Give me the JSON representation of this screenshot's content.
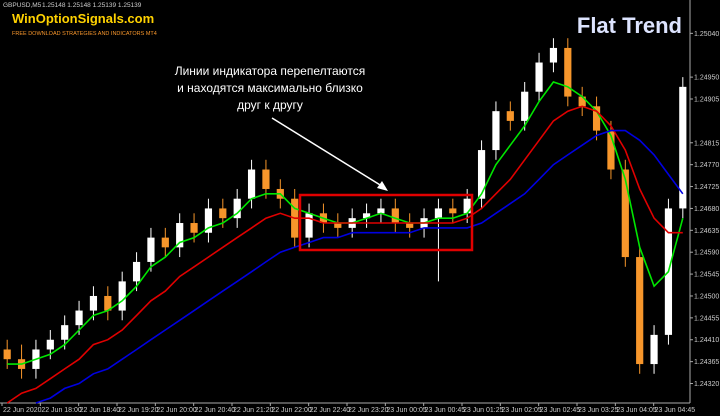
{
  "header": {
    "symbol": "GBPUSD,M5",
    "quote": "1.25148 1.25148 1.25139 1.25139",
    "logo": "WinOptionSignals.com",
    "tagline": "FREE DOWNLOAD STRATEGIES AND INDICATORS MT4"
  },
  "chart_data": {
    "type": "candlestick",
    "title": "Flat Trend",
    "annotation": [
      "Линии индикатора перепелтаются",
      "и находятся максимально близко",
      "друг к другу"
    ],
    "x_tick_labels": [
      "22 Jun 2020",
      "22 Jun 18:00",
      "22 Jun 18:40",
      "22 Jun 19:20",
      "22 Jun 20:00",
      "22 Jun 20:40",
      "22 Jun 21:20",
      "22 Jun 22:00",
      "22 Jun 22:40",
      "22 Jun 23:20",
      "23 Jun 00:05",
      "23 Jun 00:45",
      "23 Jun 01:25",
      "23 Jun 02:05",
      "23 Jun 02:45",
      "23 Jun 03:25",
      "23 Jun 04:05",
      "23 Jun 04:45"
    ],
    "ylim": [
      1.24282,
      1.25088
    ],
    "yticks": [
      {
        "value": 1.2504,
        "label": "1.25040"
      },
      {
        "value": 1.2495,
        "label": "1.24950"
      },
      {
        "value": 1.24905,
        "label": "1.24905"
      },
      {
        "value": 1.24815,
        "label": "1.24815"
      },
      {
        "value": 1.2477,
        "label": "1.24770"
      },
      {
        "value": 1.24725,
        "label": "1.24725"
      },
      {
        "value": 1.2468,
        "label": "1.24680"
      },
      {
        "value": 1.24635,
        "label": "1.24635"
      },
      {
        "value": 1.2459,
        "label": "1.24590"
      },
      {
        "value": 1.24545,
        "label": "1.24545"
      },
      {
        "value": 1.245,
        "label": "1.24500"
      },
      {
        "value": 1.24455,
        "label": "1.24455"
      },
      {
        "value": 1.2441,
        "label": "1.24410"
      },
      {
        "value": 1.24365,
        "label": "1.24365"
      },
      {
        "value": 1.2432,
        "label": "1.24320"
      }
    ],
    "up_color": "#ffffff",
    "down_color": "#f7962b",
    "open": [
      1.2439,
      1.2437,
      1.2435,
      1.2439,
      1.2441,
      1.2444,
      1.2447,
      1.245,
      1.2447,
      1.2453,
      1.2457,
      1.2462,
      1.246,
      1.2465,
      1.2463,
      1.2468,
      1.2466,
      1.247,
      1.2476,
      1.2472,
      1.247,
      1.2462,
      1.2467,
      1.2465,
      1.2464,
      1.2466,
      1.2467,
      1.2468,
      1.2465,
      1.2464,
      1.2466,
      1.2468,
      1.2467,
      1.247,
      1.248,
      1.2488,
      1.2486,
      1.2492,
      1.2498,
      1.2501,
      1.2491,
      1.2489,
      1.2484,
      1.2476,
      1.2458,
      1.2436,
      1.2442,
      1.2468
    ],
    "high": [
      1.2441,
      1.244,
      1.2441,
      1.2443,
      1.2446,
      1.2449,
      1.2452,
      1.2452,
      1.2455,
      1.2459,
      1.2464,
      1.2464,
      1.2467,
      1.2467,
      1.247,
      1.247,
      1.2472,
      1.2478,
      1.2478,
      1.2474,
      1.2472,
      1.2469,
      1.2469,
      1.2467,
      1.2468,
      1.2469,
      1.247,
      1.247,
      1.2467,
      1.2468,
      1.247,
      1.247,
      1.2472,
      1.2482,
      1.249,
      1.249,
      1.2494,
      1.25,
      1.2503,
      1.2503,
      1.2493,
      1.2491,
      1.2486,
      1.2478,
      1.246,
      1.2444,
      1.247,
      1.2495
    ],
    "low": [
      1.2435,
      1.2433,
      1.2433,
      1.2437,
      1.2439,
      1.2442,
      1.2445,
      1.2445,
      1.2445,
      1.2451,
      1.2455,
      1.2458,
      1.2458,
      1.2461,
      1.2461,
      1.2464,
      1.2464,
      1.2468,
      1.247,
      1.2468,
      1.246,
      1.246,
      1.2463,
      1.2462,
      1.2462,
      1.2464,
      1.2465,
      1.2463,
      1.2462,
      1.2462,
      1.2453,
      1.2465,
      1.2465,
      1.2468,
      1.2478,
      1.2484,
      1.2484,
      1.249,
      1.2496,
      1.2489,
      1.2487,
      1.2482,
      1.2474,
      1.2456,
      1.2434,
      1.2434,
      1.244,
      1.2466
    ],
    "close": [
      1.2437,
      1.2435,
      1.2439,
      1.2441,
      1.2444,
      1.2447,
      1.245,
      1.2447,
      1.2453,
      1.2457,
      1.2462,
      1.246,
      1.2465,
      1.2463,
      1.2468,
      1.2466,
      1.247,
      1.2476,
      1.2472,
      1.247,
      1.2462,
      1.2467,
      1.2465,
      1.2464,
      1.2466,
      1.2467,
      1.2468,
      1.2465,
      1.2464,
      1.2466,
      1.2468,
      1.2467,
      1.247,
      1.248,
      1.2488,
      1.2486,
      1.2492,
      1.2498,
      1.2501,
      1.2491,
      1.2489,
      1.2484,
      1.2476,
      1.2458,
      1.2436,
      1.2442,
      1.2468,
      1.2493
    ],
    "series": [
      {
        "color": "#00e600",
        "values": [
          1.2436,
          1.2436,
          1.2437,
          1.2438,
          1.244,
          1.2443,
          1.2446,
          1.2447,
          1.2449,
          1.2452,
          1.2456,
          1.2458,
          1.2461,
          1.2462,
          1.2464,
          1.2465,
          1.2467,
          1.247,
          1.2471,
          1.2471,
          1.2468,
          1.2467,
          1.2466,
          1.2465,
          1.2465,
          1.2466,
          1.2467,
          1.2466,
          1.2465,
          1.2465,
          1.2466,
          1.2466,
          1.2467,
          1.2471,
          1.2477,
          1.2481,
          1.2485,
          1.249,
          1.2494,
          1.2493,
          1.2491,
          1.2488,
          1.2483,
          1.2474,
          1.246,
          1.2452,
          1.2455,
          1.2466
        ]
      },
      {
        "color": "#e00000",
        "values": [
          1.2428,
          1.243,
          1.2431,
          1.2433,
          1.2435,
          1.2437,
          1.244,
          1.2441,
          1.2443,
          1.2446,
          1.2449,
          1.2451,
          1.2454,
          1.2456,
          1.2458,
          1.246,
          1.2462,
          1.2464,
          1.2466,
          1.2467,
          1.2466,
          1.2466,
          1.2465,
          1.2465,
          1.2465,
          1.2465,
          1.2465,
          1.2465,
          1.2465,
          1.2465,
          1.2465,
          1.2465,
          1.2466,
          1.2468,
          1.2471,
          1.2474,
          1.2478,
          1.2482,
          1.2486,
          1.2488,
          1.2489,
          1.2488,
          1.2485,
          1.248,
          1.2472,
          1.2466,
          1.2463,
          1.2463
        ]
      },
      {
        "color": "#0000e0",
        "values": [
          null,
          null,
          1.2428,
          1.2429,
          1.2431,
          1.2432,
          1.2434,
          1.2435,
          1.2437,
          1.2439,
          1.2441,
          1.2443,
          1.2445,
          1.2447,
          1.2449,
          1.2451,
          1.2453,
          1.2455,
          1.2457,
          1.2459,
          1.246,
          1.2461,
          1.2462,
          1.2462,
          1.2463,
          1.2463,
          1.2463,
          1.2463,
          1.2463,
          1.2464,
          1.2464,
          1.2464,
          1.2464,
          1.2465,
          1.2467,
          1.2469,
          1.2471,
          1.2474,
          1.2477,
          1.2479,
          1.2481,
          1.2483,
          1.2484,
          1.2484,
          1.2482,
          1.2479,
          1.2475,
          1.2471
        ]
      }
    ]
  }
}
